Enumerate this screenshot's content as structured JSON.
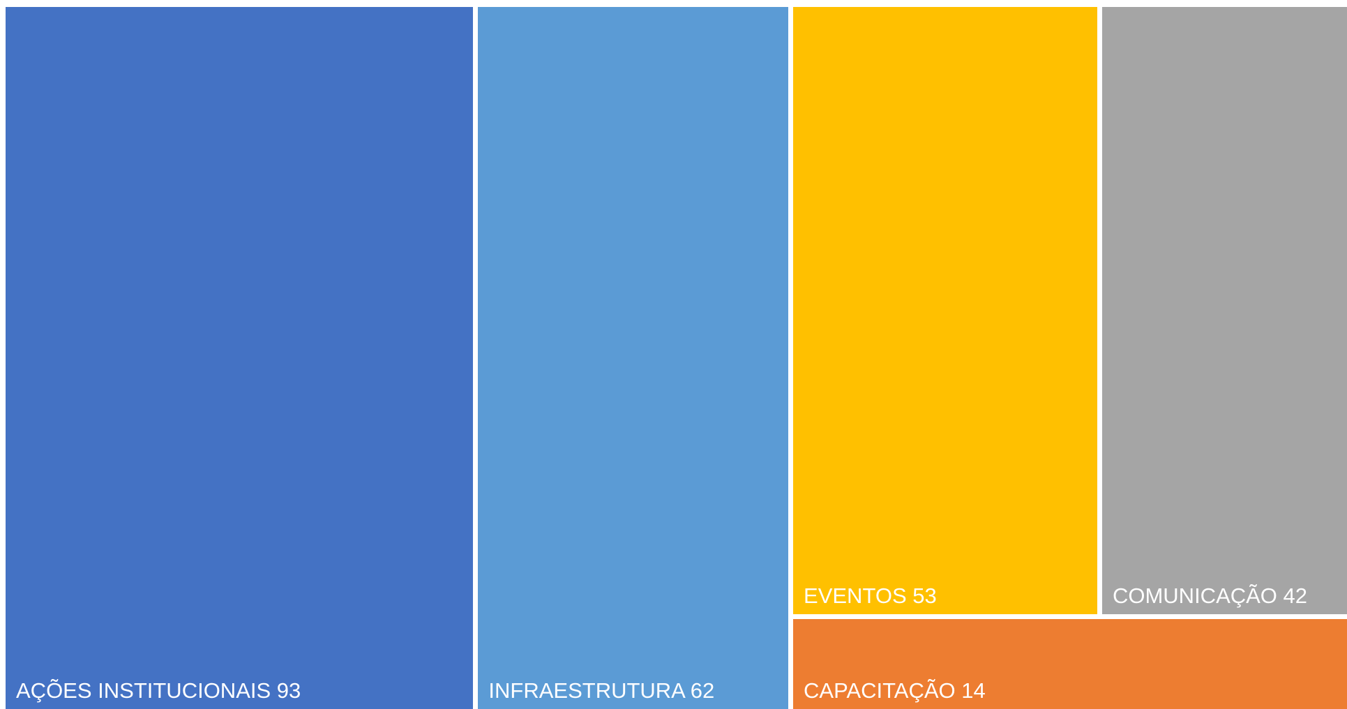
{
  "chart_data": {
    "type": "treemap",
    "title": "",
    "items": [
      {
        "label": "AÇÕES INSTITUCIONAIS",
        "value": 93,
        "color": "#4472C4"
      },
      {
        "label": "INFRAESTRUTURA",
        "value": 62,
        "color": "#5B9BD5"
      },
      {
        "label": "EVENTOS",
        "value": 53,
        "color": "#FFC000"
      },
      {
        "label": "COMUNICAÇÃO",
        "value": 42,
        "color": "#A5A5A5"
      },
      {
        "label": "CAPACITAÇÃO",
        "value": 14,
        "color": "#ED7D31"
      }
    ]
  }
}
